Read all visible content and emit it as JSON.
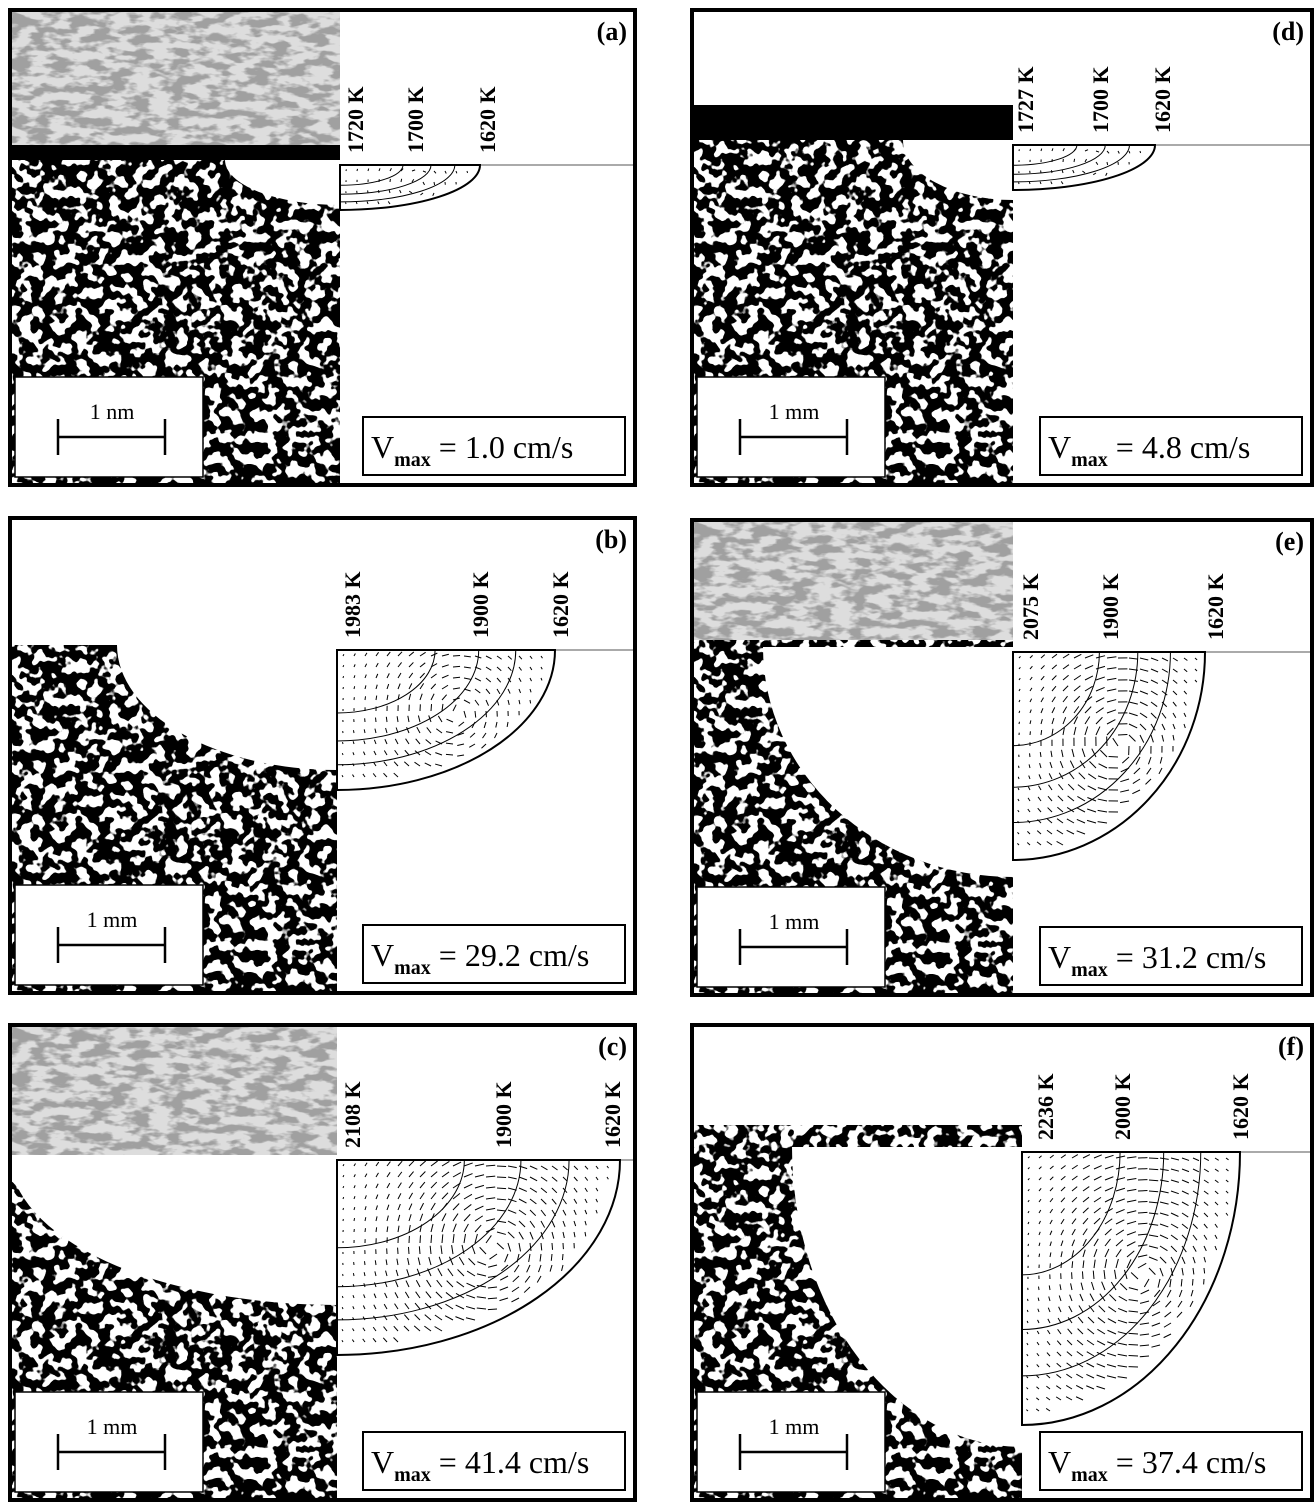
{
  "panels": [
    {
      "label": "(a)",
      "temperatures": [
        "1720 K",
        "1700 K",
        "1620 K"
      ],
      "scale_bar": "1 nm",
      "vmax": {
        "symbol": "V",
        "subscript": "max",
        "value": "= 1.0 cm/s"
      }
    },
    {
      "label": "(b)",
      "temperatures": [
        "1983 K",
        "1900 K",
        "1620 K"
      ],
      "scale_bar": "1 mm",
      "vmax": {
        "symbol": "V",
        "subscript": "max",
        "value": "= 29.2 cm/s"
      }
    },
    {
      "label": "(c)",
      "temperatures": [
        "2108 K",
        "1900 K",
        "1620 K"
      ],
      "scale_bar": "1 mm",
      "vmax": {
        "symbol": "V",
        "subscript": "max",
        "value": "= 41.4 cm/s"
      }
    },
    {
      "label": "(d)",
      "temperatures": [
        "1727 K",
        "1700 K",
        "1620 K"
      ],
      "scale_bar": "1 mm",
      "vmax": {
        "symbol": "V",
        "subscript": "max",
        "value": "= 4.8 cm/s"
      }
    },
    {
      "label": "(e)",
      "temperatures": [
        "2075 K",
        "1900 K",
        "1620 K"
      ],
      "scale_bar": "1 mm",
      "vmax": {
        "symbol": "V",
        "subscript": "max",
        "value": "= 31.2 cm/s"
      }
    },
    {
      "label": "(f)",
      "temperatures": [
        "2236 K",
        "2000 K",
        "1620 K"
      ],
      "scale_bar": "1 mm",
      "vmax": {
        "symbol": "V",
        "subscript": "max",
        "value": "= 37.4 cm/s"
      }
    }
  ]
}
